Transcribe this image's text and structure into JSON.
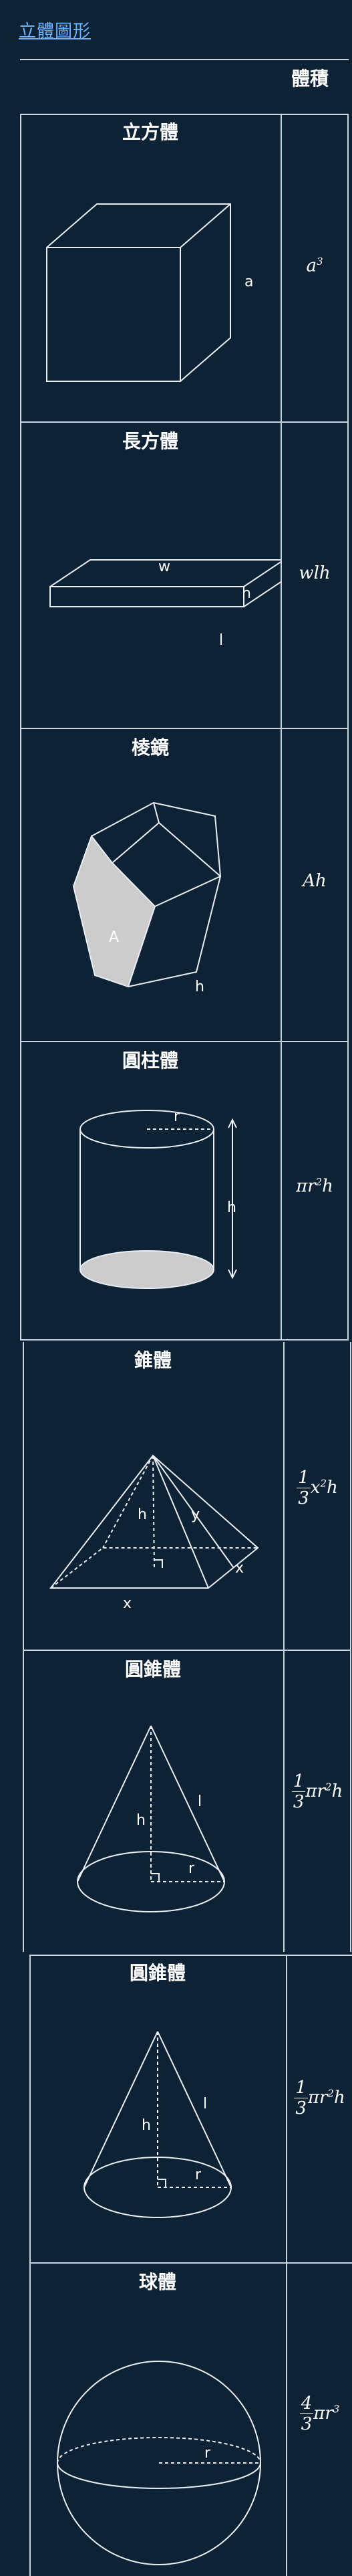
{
  "page": {
    "title": "立體圖形"
  },
  "table": {
    "volume_header": "體積",
    "rows": [
      {
        "name": "立方體",
        "labels": [
          "a"
        ],
        "formula": "a³"
      },
      {
        "name": "長方體",
        "labels": [
          "w",
          "h",
          "l"
        ],
        "formula": "wlh"
      },
      {
        "name": "棱鏡",
        "labels": [
          "A",
          "h"
        ],
        "formula": "Ah"
      },
      {
        "name": "圓柱體",
        "labels": [
          "r",
          "h"
        ],
        "formula_main": "πr",
        "formula_exp": "2",
        "formula_tail": "h"
      },
      {
        "name": "錐體",
        "labels": [
          "h",
          "y",
          "x",
          "x"
        ],
        "frac_num": "1",
        "frac_den": "3",
        "formula_tail": "x²h"
      },
      {
        "name": "圓錐體",
        "labels": [
          "l",
          "h",
          "r"
        ],
        "frac_num": "1",
        "frac_den": "3",
        "formula_tail": "πr²h"
      },
      {
        "name": "圓錐體",
        "labels": [
          "l",
          "h",
          "r"
        ],
        "frac_num": "1",
        "frac_den": "3",
        "formula_tail": "πr²h"
      },
      {
        "name": "球體",
        "labels": [
          "r"
        ],
        "frac_num": "4",
        "frac_den": "3",
        "formula_tail": "πr³"
      }
    ]
  }
}
